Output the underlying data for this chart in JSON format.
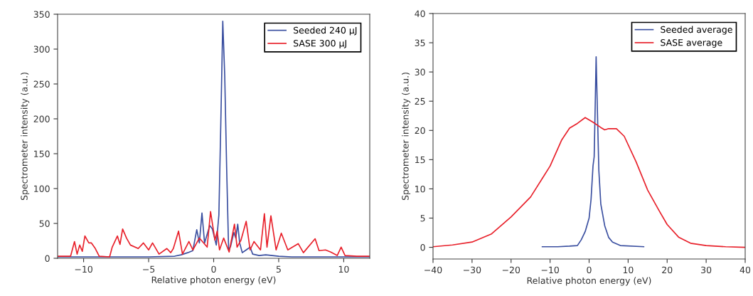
{
  "chart_data": [
    {
      "type": "line",
      "xlabel": "Relative photon energy (eV)",
      "ylabel": "Spectrometer intensity (a.u.)",
      "xlim": [
        -12,
        12
      ],
      "ylim": [
        0,
        350
      ],
      "xticks": [
        {
          "value": -10,
          "label": "−10"
        },
        {
          "value": -5,
          "label": "−5"
        },
        0,
        5,
        10
      ],
      "yticks": [
        0,
        50,
        100,
        150,
        200,
        250,
        300,
        350
      ],
      "legend": "top right",
      "grid": false,
      "series": [
        {
          "name": "Seeded 240 μJ",
          "color": "#3a4fa0",
          "x": [
            -12,
            -8,
            -5,
            -3,
            -2.5,
            -2,
            -1.6,
            -1.3,
            -1.1,
            -0.9,
            -0.7,
            -0.3,
            -0.1,
            0.2,
            0.4,
            0.55,
            0.7,
            0.85,
            1.0,
            1.15,
            1.3,
            1.55,
            1.7,
            1.85,
            2.0,
            2.2,
            2.5,
            2.8,
            3.0,
            3.5,
            4,
            5,
            6,
            12
          ],
          "values": [
            2,
            2,
            2,
            3,
            5,
            8,
            11,
            41,
            22,
            65,
            22,
            47,
            42,
            19,
            62,
            195,
            340,
            262,
            128,
            12,
            17,
            37,
            29,
            49,
            22,
            8,
            12,
            16,
            6,
            4,
            5,
            3,
            2,
            2
          ]
        },
        {
          "name": "SASE 300 μJ",
          "color": "#e8202a",
          "x": [
            -12,
            -11,
            -10.7,
            -10.5,
            -10.3,
            -10.1,
            -9.9,
            -9.6,
            -9.4,
            -9.1,
            -8.8,
            -8,
            -7.8,
            -7.4,
            -7.2,
            -7.0,
            -6.7,
            -6.4,
            -5.8,
            -5.4,
            -5.0,
            -4.7,
            -4.2,
            -3.6,
            -3.3,
            -3.1,
            -2.7,
            -2.4,
            -1.9,
            -1.6,
            -1.1,
            -0.5,
            -0.24,
            0.1,
            0.27,
            0.45,
            0.77,
            1.19,
            1.6,
            1.8,
            2.1,
            2.5,
            2.8,
            3.1,
            3.6,
            3.9,
            4.1,
            4.4,
            4.8,
            5.2,
            5.7,
            6.5,
            6.9,
            7.8,
            8.1,
            8.6,
            9.0,
            9.5,
            9.8,
            10.1,
            11,
            12
          ],
          "values": [
            3,
            3,
            24,
            6,
            19,
            10,
            32,
            22,
            22,
            14,
            3,
            2,
            16,
            32,
            20,
            42,
            29,
            19,
            14,
            22,
            12,
            22,
            6,
            14,
            8,
            14,
            39,
            6,
            24,
            12,
            29,
            16,
            67,
            26,
            39,
            12,
            29,
            9,
            49,
            16,
            26,
            53,
            12,
            24,
            12,
            64,
            16,
            61,
            12,
            36,
            12,
            21,
            8,
            28,
            11,
            12,
            9,
            4,
            16,
            4,
            3,
            3
          ]
        }
      ]
    },
    {
      "type": "line",
      "xlabel": "Relative photon energy (eV)",
      "ylabel": "Spectrometer intensity (a.u.)",
      "xlim": [
        -40,
        40
      ],
      "ylim": [
        -2,
        40
      ],
      "xticks": [
        {
          "value": -40,
          "label": "−40"
        },
        {
          "value": -30,
          "label": "−30"
        },
        {
          "value": -20,
          "label": "−20"
        },
        {
          "value": -10,
          "label": "−10"
        },
        0,
        10,
        20,
        30,
        40
      ],
      "yticks": [
        0,
        5,
        10,
        15,
        20,
        25,
        30,
        35,
        40
      ],
      "legend": "top right",
      "grid": false,
      "series": [
        {
          "name": "Seeded average",
          "color": "#3a4fa0",
          "x": [
            -12,
            -8,
            -5,
            -3,
            -2,
            -1,
            0,
            0.5,
            1,
            1.3,
            1.5,
            1.8,
            2.1,
            2.5,
            3,
            4,
            5,
            6,
            8,
            14
          ],
          "values": [
            0.1,
            0.1,
            0.2,
            0.3,
            1.3,
            2.7,
            5.0,
            8.2,
            13.9,
            15.5,
            22,
            32.6,
            24.1,
            13.1,
            7.4,
            3.7,
            1.7,
            0.9,
            0.3,
            0.1
          ]
        },
        {
          "name": "SASE average",
          "color": "#e8202a",
          "x": [
            -40,
            -35,
            -30,
            -25,
            -20,
            -15,
            -10,
            -7,
            -5,
            -3,
            -1,
            1,
            3,
            4,
            5,
            7,
            9,
            12,
            15,
            18,
            20,
            23,
            26,
            30,
            35,
            40
          ],
          "values": [
            0.1,
            0.4,
            0.9,
            2.3,
            5.2,
            8.6,
            13.9,
            18.4,
            20.4,
            21.2,
            22.2,
            21.4,
            20.5,
            20.1,
            20.3,
            20.3,
            19.0,
            14.7,
            9.8,
            6.2,
            3.9,
            1.7,
            0.7,
            0.3,
            0.1,
            0.0
          ]
        }
      ]
    }
  ]
}
